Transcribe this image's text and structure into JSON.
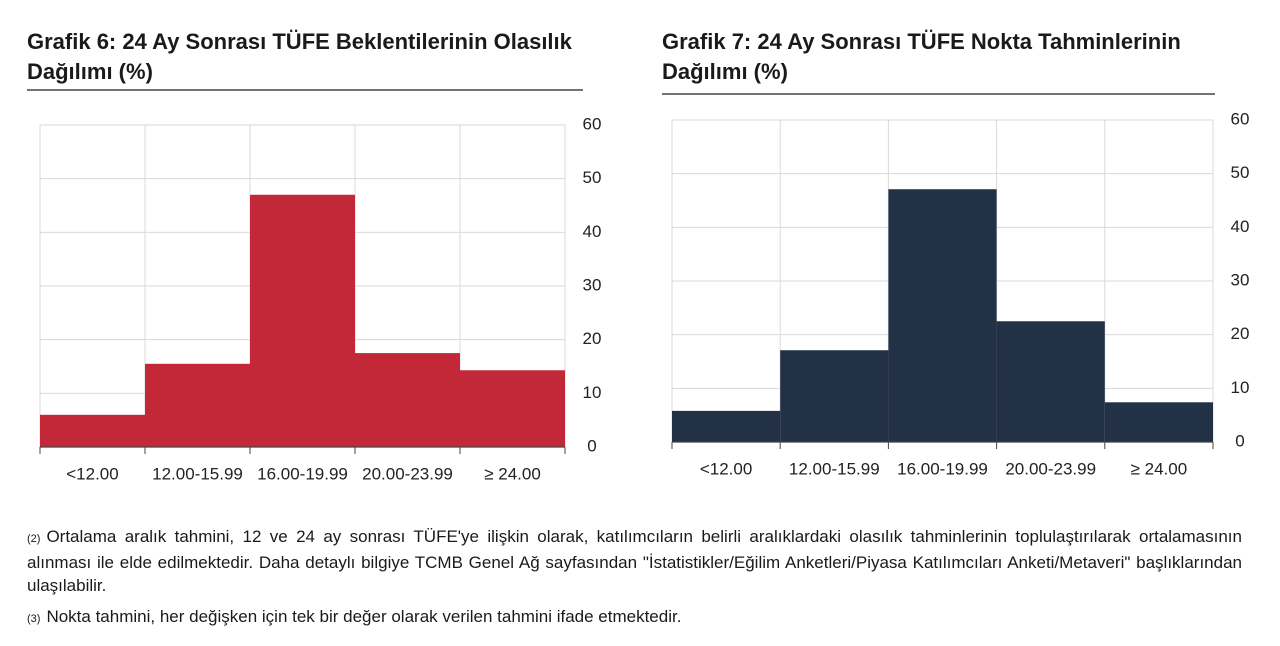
{
  "chart_data": [
    {
      "type": "bar",
      "title": "Grafik 6: 24 Ay Sonrası TÜFE Beklentilerinin Olasılık Dağılımı (%)",
      "categories": [
        "<12.00",
        "12.00-15.99",
        "16.00-19.99",
        "20.00-23.99",
        "≥ 24.00"
      ],
      "values": [
        6,
        15.5,
        47,
        17.5,
        14.3
      ],
      "color": "#c32838",
      "ylim": [
        0,
        60
      ],
      "yticks": [
        0,
        10,
        20,
        30,
        40,
        50,
        60
      ],
      "grid": true,
      "y_axis_position": "right"
    },
    {
      "type": "bar",
      "title": "Grafik 7: 24 Ay Sonrası TÜFE Nokta Tahminlerinin Dağılımı (%)",
      "categories": [
        "<12.00",
        "12.00-15.99",
        "16.00-19.99",
        "20.00-23.99",
        "≥ 24.00"
      ],
      "values": [
        5.8,
        17.1,
        47.1,
        22.5,
        7.4
      ],
      "color": "#223145",
      "ylim": [
        0,
        60
      ],
      "yticks": [
        0,
        10,
        20,
        30,
        40,
        50,
        60
      ],
      "grid": true,
      "y_axis_position": "right"
    }
  ],
  "notes": [
    {
      "marker": "(2)",
      "text": "Ortalama aralık tahmini, 12 ve 24 ay sonrası TÜFE'ye ilişkin olarak, katılımcıların belirli aralıklardaki olasılık tahminlerinin toplulaştırılarak ortalamasının alınması ile elde edilmektedir. Daha detaylı bilgiye TCMB Genel Ağ sayfasından \"İstatistikler/Eğilim Anketleri/Piyasa Katılımcıları Anketi/Metaveri\" başlıklarından ulaşılabilir."
    },
    {
      "marker": "(3)",
      "text": "Nokta tahmini, her değişken için tek bir değer olarak verilen tahmini ifade etmektedir."
    }
  ]
}
